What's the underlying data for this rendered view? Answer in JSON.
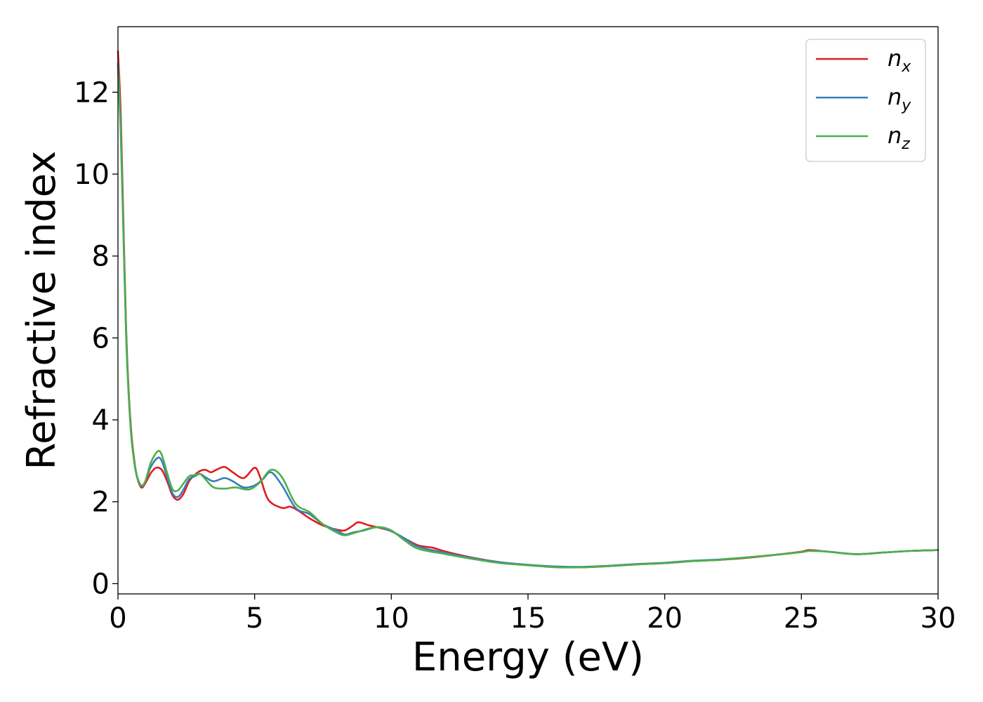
{
  "chart_data": {
    "type": "line",
    "xlabel": "Energy (eV)",
    "ylabel": "Refractive index",
    "xlim": [
      0,
      30
    ],
    "ylim": [
      -0.25,
      13.6
    ],
    "xticks": [
      "0",
      "5",
      "10",
      "15",
      "20",
      "25",
      "30"
    ],
    "yticks": [
      "0",
      "2",
      "4",
      "6",
      "8",
      "10",
      "12"
    ],
    "grid": false,
    "legend_position": "top-right",
    "series": [
      {
        "name": "n",
        "sub": "x",
        "color": "#e41a1c",
        "x": [
          0,
          0.1,
          0.2,
          0.3,
          0.4,
          0.5,
          0.6,
          0.7,
          0.85,
          1.0,
          1.2,
          1.4,
          1.6,
          1.8,
          2.0,
          2.2,
          2.4,
          2.6,
          2.8,
          3.0,
          3.2,
          3.4,
          3.6,
          3.9,
          4.2,
          4.6,
          5.0,
          5.2,
          5.5,
          6.0,
          6.3,
          6.6,
          7.0,
          7.5,
          8.0,
          8.3,
          8.6,
          8.8,
          9.2,
          9.6,
          10.0,
          10.5,
          11.0,
          11.5,
          12.0,
          13.0,
          14.0,
          15.0,
          16.0,
          17.0,
          18.0,
          19.0,
          20.0,
          21.0,
          22.0,
          23.0,
          24.0,
          25.0,
          25.3,
          26.0,
          27.0,
          28.0,
          29.0,
          30.0
        ],
        "y": [
          13.0,
          11.5,
          8.8,
          6.2,
          4.6,
          3.6,
          3.0,
          2.6,
          2.35,
          2.45,
          2.7,
          2.83,
          2.78,
          2.5,
          2.15,
          2.05,
          2.2,
          2.5,
          2.65,
          2.75,
          2.78,
          2.72,
          2.78,
          2.85,
          2.72,
          2.58,
          2.83,
          2.6,
          2.05,
          1.85,
          1.88,
          1.78,
          1.6,
          1.42,
          1.32,
          1.3,
          1.42,
          1.5,
          1.42,
          1.36,
          1.28,
          1.1,
          0.93,
          0.88,
          0.78,
          0.63,
          0.52,
          0.45,
          0.41,
          0.4,
          0.43,
          0.47,
          0.5,
          0.55,
          0.58,
          0.63,
          0.7,
          0.78,
          0.82,
          0.78,
          0.72,
          0.76,
          0.8,
          0.82
        ]
      },
      {
        "name": "n",
        "sub": "y",
        "color": "#377eb8",
        "x": [
          0,
          0.1,
          0.2,
          0.3,
          0.4,
          0.5,
          0.6,
          0.7,
          0.85,
          1.0,
          1.2,
          1.45,
          1.6,
          1.8,
          2.0,
          2.2,
          2.4,
          2.6,
          2.8,
          3.0,
          3.2,
          3.5,
          3.9,
          4.2,
          4.6,
          5.0,
          5.3,
          5.6,
          6.0,
          6.5,
          7.0,
          7.5,
          8.0,
          8.3,
          8.6,
          9.0,
          9.5,
          10.0,
          10.5,
          11.0,
          12.0,
          13.0,
          14.0,
          15.0,
          16.0,
          17.0,
          18.0,
          19.0,
          20.0,
          21.0,
          22.0,
          23.0,
          24.0,
          25.0,
          25.3,
          26.0,
          27.0,
          28.0,
          29.0,
          30.0
        ],
        "y": [
          12.7,
          11.2,
          8.6,
          6.1,
          4.5,
          3.55,
          2.95,
          2.6,
          2.38,
          2.5,
          2.85,
          3.07,
          3.0,
          2.6,
          2.2,
          2.12,
          2.3,
          2.55,
          2.62,
          2.68,
          2.6,
          2.5,
          2.58,
          2.5,
          2.35,
          2.4,
          2.55,
          2.72,
          2.4,
          1.85,
          1.7,
          1.45,
          1.3,
          1.2,
          1.25,
          1.3,
          1.38,
          1.28,
          1.1,
          0.9,
          0.75,
          0.62,
          0.52,
          0.46,
          0.42,
          0.41,
          0.44,
          0.48,
          0.51,
          0.56,
          0.59,
          0.64,
          0.7,
          0.77,
          0.8,
          0.78,
          0.72,
          0.76,
          0.8,
          0.82
        ]
      },
      {
        "name": "n",
        "sub": "z",
        "color": "#4daf4a",
        "x": [
          0,
          0.1,
          0.2,
          0.3,
          0.4,
          0.5,
          0.6,
          0.7,
          0.85,
          1.0,
          1.2,
          1.45,
          1.6,
          1.8,
          2.0,
          2.2,
          2.4,
          2.6,
          2.8,
          3.0,
          3.2,
          3.5,
          3.9,
          4.3,
          4.8,
          5.2,
          5.6,
          6.0,
          6.5,
          7.0,
          7.5,
          8.0,
          8.3,
          8.7,
          9.2,
          9.6,
          10.0,
          10.5,
          11.0,
          12.0,
          13.0,
          14.0,
          15.0,
          16.0,
          17.0,
          18.0,
          19.0,
          20.0,
          21.0,
          22.0,
          23.0,
          24.0,
          25.0,
          25.3,
          26.0,
          27.0,
          28.0,
          29.0,
          30.0
        ],
        "y": [
          12.6,
          11.0,
          8.5,
          6.0,
          4.5,
          3.5,
          2.95,
          2.62,
          2.4,
          2.5,
          2.95,
          3.23,
          3.15,
          2.7,
          2.3,
          2.28,
          2.45,
          2.62,
          2.65,
          2.68,
          2.55,
          2.35,
          2.32,
          2.35,
          2.3,
          2.48,
          2.78,
          2.6,
          1.95,
          1.75,
          1.45,
          1.25,
          1.18,
          1.25,
          1.35,
          1.38,
          1.3,
          1.05,
          0.85,
          0.72,
          0.6,
          0.5,
          0.45,
          0.4,
          0.4,
          0.43,
          0.47,
          0.5,
          0.55,
          0.58,
          0.64,
          0.7,
          0.77,
          0.8,
          0.78,
          0.72,
          0.76,
          0.8,
          0.82
        ]
      }
    ]
  }
}
